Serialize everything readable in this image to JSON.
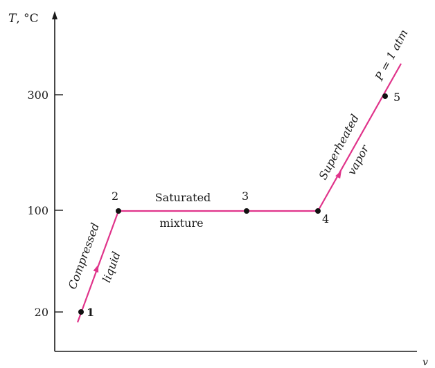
{
  "axes": {
    "y_label_var": "T",
    "y_label_unit": ", °C",
    "x_label": "v",
    "y_ticks": [
      "300",
      "100",
      "20"
    ]
  },
  "points": [
    {
      "id": "1",
      "label": "1"
    },
    {
      "id": "2",
      "label": "2"
    },
    {
      "id": "3",
      "label": "3"
    },
    {
      "id": "4",
      "label": "4"
    },
    {
      "id": "5",
      "label": "5"
    }
  ],
  "regions": {
    "compressed_line1": "Compressed",
    "compressed_line2": "liquid",
    "saturated_line1": "Saturated",
    "saturated_line2": "mixture",
    "superheated_line1": "Superheated",
    "superheated_line2": "vapor",
    "pressure": "P = 1 atm"
  },
  "colors": {
    "curve": "#e0338a",
    "axis": "#1a1a1a"
  }
}
